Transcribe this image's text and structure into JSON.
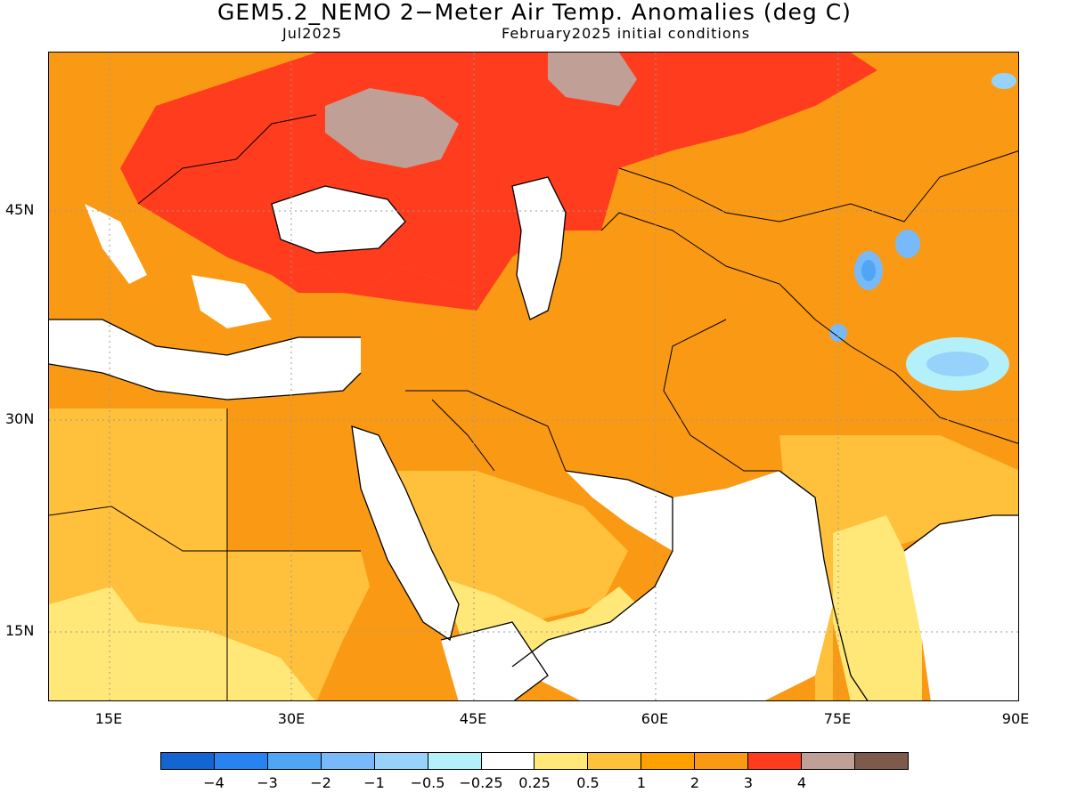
{
  "title": "GEM5.2_NEMO 2−Meter Air Temp. Anomalies (deg C)",
  "subtitle_left": "Jul2025",
  "subtitle_right": "February2025 initial conditions",
  "map": {
    "lon_range": [
      10,
      90
    ],
    "lat_range": [
      10,
      55
    ],
    "lat_ticks": [
      "45N",
      "30N",
      "15N"
    ],
    "lon_ticks": [
      "15E",
      "30E",
      "45E",
      "60E",
      "75E",
      "90E"
    ],
    "grid": true
  },
  "colors": {
    "neg4": "#1464d2",
    "neg3": "#2882f0",
    "neg2": "#50a5f5",
    "neg1": "#78b9fa",
    "neg05": "#96d2fa",
    "neg025": "#b4f0fa",
    "zero": "#ffffff",
    "p025": "#ffe878",
    "p05": "#ffc03c",
    "p1": "#ffa000",
    "p2": "#fa9a14",
    "p3": "#ff3c1e",
    "p4": "#c0a096",
    "p5": "#7d5a4b"
  },
  "legend": {
    "swatches": [
      "#1464d2",
      "#2882f0",
      "#50a5f5",
      "#78b9fa",
      "#96d2fa",
      "#b4f0fa",
      "#ffffff",
      "#ffe878",
      "#ffc03c",
      "#ffa000",
      "#fa9a14",
      "#ff3c1e",
      "#c0a096",
      "#7d5a4b"
    ],
    "labels": [
      "−4",
      "−3",
      "−2",
      "−1",
      "−0.5",
      "−0.25",
      "0.25",
      "0.5",
      "1",
      "2",
      "3",
      "4"
    ]
  }
}
